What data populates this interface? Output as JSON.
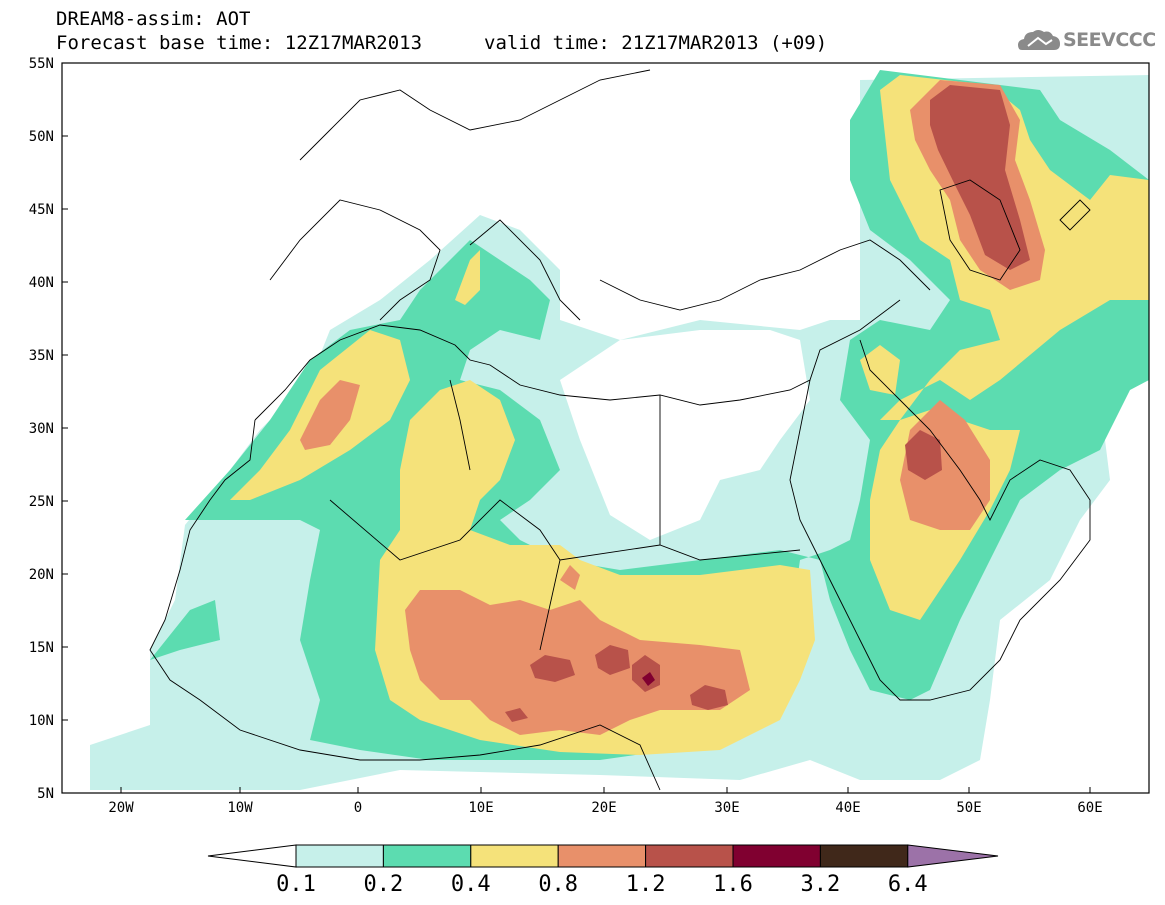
{
  "header": {
    "title": "DREAM8-assim: AOT",
    "base_time": "Forecast base time: 12Z17MAR2013",
    "valid_time": "valid time: 21Z17MAR2013 (+09)"
  },
  "logo": {
    "text": "SEEVCCC",
    "icon": "cloud-icon",
    "color": "#8a8a8a"
  },
  "map": {
    "lon_range": [
      -25,
      65
    ],
    "lat_range": [
      5,
      55
    ],
    "lon_ticks": [
      "20W",
      "10W",
      "0",
      "10E",
      "20E",
      "30E",
      "40E",
      "50E",
      "60E"
    ],
    "lat_ticks": [
      "5N",
      "10N",
      "15N",
      "20N",
      "25N",
      "30N",
      "35N",
      "40N",
      "45N",
      "50N",
      "55N"
    ],
    "field": "AOT"
  },
  "colorbar": {
    "labels": [
      "0.1",
      "0.2",
      "0.4",
      "0.8",
      "1.2",
      "1.6",
      "3.2",
      "6.4"
    ],
    "colors": [
      "#ffffff",
      "#c6f0ea",
      "#5cdcb0",
      "#f5e27a",
      "#e8906a",
      "#b8524a",
      "#800030",
      "#40281a",
      "#9c72a8"
    ]
  }
}
